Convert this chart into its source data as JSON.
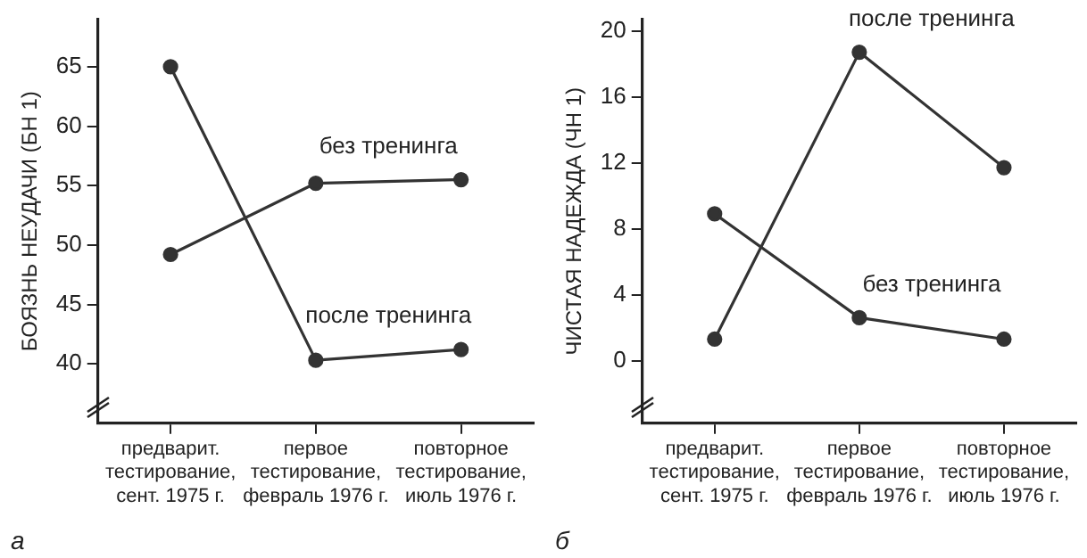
{
  "chart_data": [
    {
      "type": "line",
      "ylabel": "БОЯЗНЬ НЕУДАЧИ (БН 1)",
      "categories": [
        "предварит.\nтестирование,\nсент. 1975 г.",
        "первое\nтестирование,\nфевраль 1976 г.",
        "повторное\nтестирование,\nиюль 1976 г."
      ],
      "series": [
        {
          "name": "без тренинга",
          "color": "#333333",
          "values": [
            49.2,
            55.2,
            55.5
          ]
        },
        {
          "name": "после тренинга",
          "color": "#333333",
          "values": [
            65,
            40.3,
            41.2
          ]
        }
      ],
      "ylim": [
        35,
        69
      ],
      "yticks": [
        40,
        45,
        50,
        55,
        60,
        65
      ],
      "grid": false,
      "legend": false,
      "marker": "circle",
      "line_style": "solid",
      "annotations": [
        "а"
      ]
    },
    {
      "type": "line",
      "ylabel": "ЧИСТАЯ НАДЕЖДА (ЧН 1)",
      "categories": [
        "предварит.\nтестирование,\nсент. 1975 г.",
        "первое\nтестирование,\nфевраль 1976 г.",
        "повторное\nтестирование,\nиюль 1976 г."
      ],
      "series": [
        {
          "name": "после тренинга",
          "color": "#333333",
          "values": [
            1.3,
            18.7,
            11.7
          ]
        },
        {
          "name": "без тренинга",
          "color": "#333333",
          "values": [
            8.9,
            2.6,
            1.3
          ]
        }
      ],
      "ylim": [
        -3.8,
        20.7
      ],
      "yticks": [
        0,
        4,
        8,
        12,
        16,
        20
      ],
      "grid": false,
      "legend": false,
      "marker": "circle",
      "line_style": "solid",
      "annotations": [
        "б"
      ]
    }
  ]
}
